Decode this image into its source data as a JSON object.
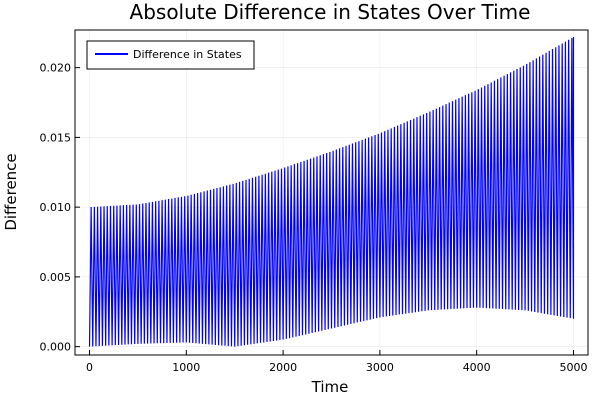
{
  "chart_data": {
    "type": "line",
    "title": "Absolute Difference in States Over Time",
    "xlabel": "Time",
    "ylabel": "Difference",
    "xlim": [
      -150,
      5150
    ],
    "ylim": [
      -0.0006,
      0.0227
    ],
    "x_ticks": [
      0,
      1000,
      2000,
      3000,
      4000,
      5000
    ],
    "x_tick_labels": [
      "0",
      "1000",
      "2000",
      "3000",
      "4000",
      "5000"
    ],
    "y_ticks": [
      0.0,
      0.005,
      0.01,
      0.015,
      0.02
    ],
    "y_tick_labels": [
      "0.000",
      "0.005",
      "0.010",
      "0.015",
      "0.020"
    ],
    "grid": true,
    "legend_position": "top-left",
    "series": [
      {
        "name": "Difference in States",
        "color": "#0000ff",
        "oscillation_cycles": 150,
        "upper_envelope": {
          "x": [
            0,
            500,
            1000,
            1500,
            2000,
            2500,
            3000,
            3500,
            4000,
            4500,
            5000
          ],
          "y": [
            0.01,
            0.0102,
            0.0108,
            0.0117,
            0.0128,
            0.014,
            0.0153,
            0.0168,
            0.0184,
            0.0202,
            0.0222
          ]
        },
        "lower_envelope": {
          "x": [
            0,
            500,
            1000,
            1500,
            2000,
            2500,
            3000,
            3500,
            4000,
            4500,
            5000
          ],
          "y": [
            0.0,
            0.0002,
            0.0003,
            0.0,
            0.0005,
            0.0013,
            0.0021,
            0.0026,
            0.0028,
            0.0026,
            0.002
          ]
        },
        "end_value": 0.0203
      }
    ]
  }
}
